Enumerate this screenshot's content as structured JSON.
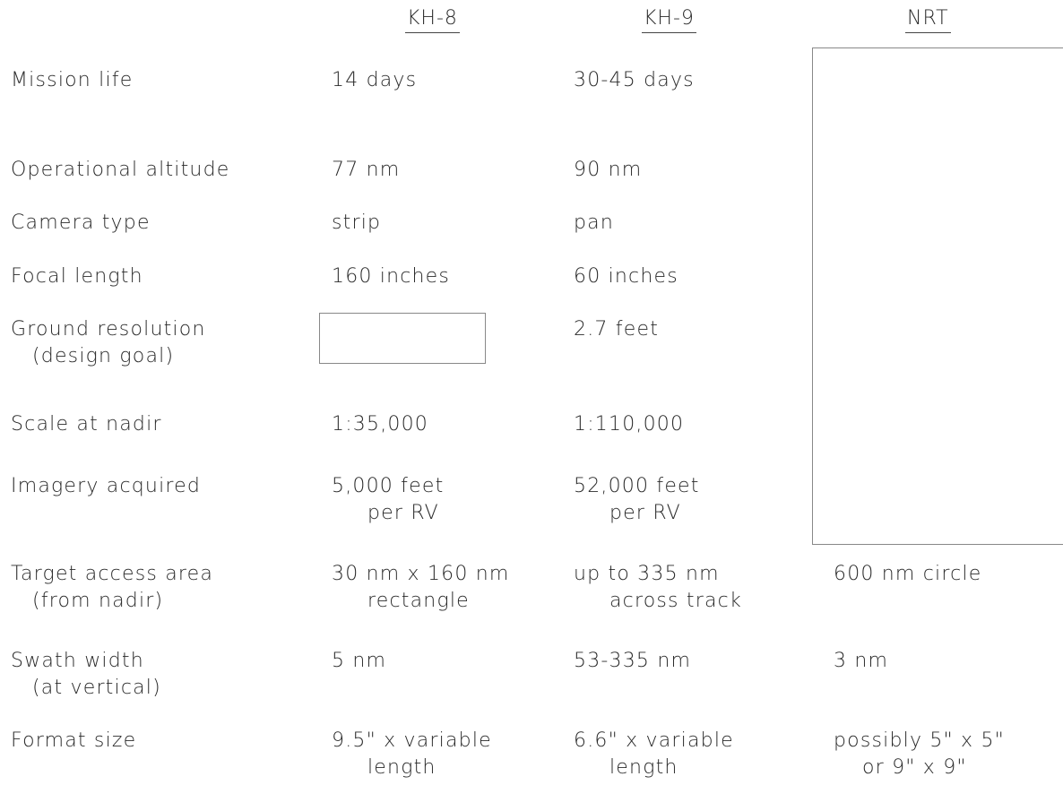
{
  "headers": {
    "kh8": "KH-8",
    "kh9": "KH-9",
    "nrt": "NRT"
  },
  "rows": [
    {
      "label": "Mission life",
      "label2": "",
      "kh8": "14 days",
      "kh8_2": "",
      "kh9": "30-45 days",
      "kh9_2": "",
      "nrt": "",
      "nrt_2": ""
    },
    {
      "label": "Operational altitude",
      "label2": "",
      "kh8": "77 nm",
      "kh8_2": "",
      "kh9": "90 nm",
      "kh9_2": "",
      "nrt": "",
      "nrt_2": ""
    },
    {
      "label": "Camera type",
      "label2": "",
      "kh8": "strip",
      "kh8_2": "",
      "kh9": "pan",
      "kh9_2": "",
      "nrt": "",
      "nrt_2": ""
    },
    {
      "label": "Focal length",
      "label2": "",
      "kh8": "160 inches",
      "kh8_2": "",
      "kh9": "60 inches",
      "kh9_2": "",
      "nrt": "",
      "nrt_2": ""
    },
    {
      "label": "Ground resolution",
      "label2": "(design goal)",
      "kh8": "",
      "kh8_2": "",
      "kh9": "2.7 feet",
      "kh9_2": "",
      "nrt": "",
      "nrt_2": ""
    },
    {
      "label": "Scale at nadir",
      "label2": "",
      "kh8": "1:35,000",
      "kh8_2": "",
      "kh9": "1:110,000",
      "kh9_2": "",
      "nrt": "",
      "nrt_2": ""
    },
    {
      "label": "Imagery acquired",
      "label2": "",
      "kh8": "5,000 feet",
      "kh8_2": "per RV",
      "kh9": "52,000 feet",
      "kh9_2": "per RV",
      "nrt": "",
      "nrt_2": ""
    },
    {
      "label": "Target access area",
      "label2": "(from nadir)",
      "kh8": "30 nm x 160 nm",
      "kh8_2": "rectangle",
      "kh9": "up to 335 nm",
      "kh9_2": "across track",
      "nrt": "600 nm circle",
      "nrt_2": ""
    },
    {
      "label": "Swath width",
      "label2": "(at vertical)",
      "kh8": "5 nm",
      "kh8_2": "",
      "kh9": "53-335 nm",
      "kh9_2": "",
      "nrt": "3 nm",
      "nrt_2": ""
    },
    {
      "label": "Format size",
      "label2": "",
      "kh8": "9.5\" x variable",
      "kh8_2": "length",
      "kh9": "6.6\" x variable",
      "kh9_2": "length",
      "nrt": "possibly 5\" x 5\"",
      "nrt_2": "or 9\" x 9\""
    }
  ]
}
